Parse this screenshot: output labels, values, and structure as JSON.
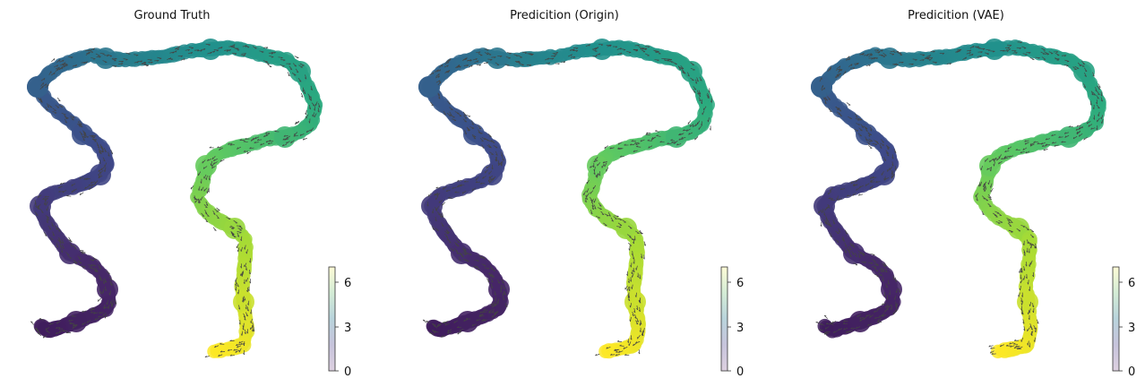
{
  "chart_data": [
    {
      "type": "scatter",
      "title": "Ground Truth",
      "colorbar": {
        "ticks": [
          "0",
          "3",
          "6"
        ],
        "range": [
          0,
          7
        ]
      },
      "embedding_trace": [
        [
          0.05,
          0.96
        ],
        [
          0.08,
          0.82
        ],
        [
          0.12,
          0.77
        ],
        [
          0.16,
          0.66
        ],
        [
          0.2,
          0.52
        ],
        [
          0.25,
          0.47
        ],
        [
          0.28,
          0.4
        ],
        [
          0.29,
          0.29
        ],
        [
          0.19,
          0.23
        ],
        [
          0.12,
          0.2
        ],
        [
          0.07,
          0.12
        ],
        [
          0.1,
          0.0
        ],
        [
          0.16,
          -0.06
        ],
        [
          0.22,
          -0.2
        ],
        [
          0.23,
          -0.32
        ],
        [
          0.28,
          -0.42
        ],
        [
          0.36,
          -0.48
        ],
        [
          0.42,
          -0.5
        ],
        [
          0.45,
          -0.63
        ],
        [
          0.48,
          -0.74
        ],
        [
          0.52,
          -0.86
        ],
        [
          0.56,
          -0.98
        ],
        [
          0.53,
          -1.1
        ],
        [
          0.42,
          -1.13
        ],
        [
          0.3,
          -1.15
        ],
        [
          0.22,
          -1.18
        ],
        [
          0.16,
          -1.2
        ],
        [
          0.11,
          -1.15
        ]
      ],
      "embedding_trace_right": [
        [
          0.05,
          0.96
        ],
        [
          0.28,
          0.98
        ],
        [
          0.5,
          0.97
        ],
        [
          0.68,
          0.98
        ],
        [
          0.9,
          1.0
        ],
        [
          1.05,
          0.96
        ],
        [
          1.18,
          0.9
        ],
        [
          1.28,
          0.82
        ],
        [
          1.32,
          0.66
        ],
        [
          1.3,
          0.52
        ],
        [
          1.17,
          0.46
        ],
        [
          1.04,
          0.43
        ],
        [
          0.92,
          0.35
        ],
        [
          0.86,
          0.25
        ],
        [
          0.86,
          0.1
        ],
        [
          0.84,
          0.0
        ],
        [
          0.9,
          -0.1
        ],
        [
          1.0,
          -0.2
        ],
        [
          1.05,
          -0.32
        ],
        [
          1.05,
          -0.55
        ],
        [
          1.03,
          -0.75
        ],
        [
          1.02,
          -0.95
        ],
        [
          1.03,
          -1.15
        ],
        [
          1.0,
          -1.28
        ],
        [
          0.9,
          -1.32
        ]
      ]
    },
    {
      "type": "scatter",
      "title": "Predicition (Origin)",
      "colorbar": {
        "ticks": [
          "0",
          "3",
          "6"
        ],
        "range": [
          0,
          7
        ]
      }
    },
    {
      "type": "scatter",
      "title": "Predicition (VAE)",
      "colorbar": {
        "ticks": [
          "0",
          "3",
          "6"
        ],
        "range": [
          0,
          7
        ]
      }
    }
  ]
}
